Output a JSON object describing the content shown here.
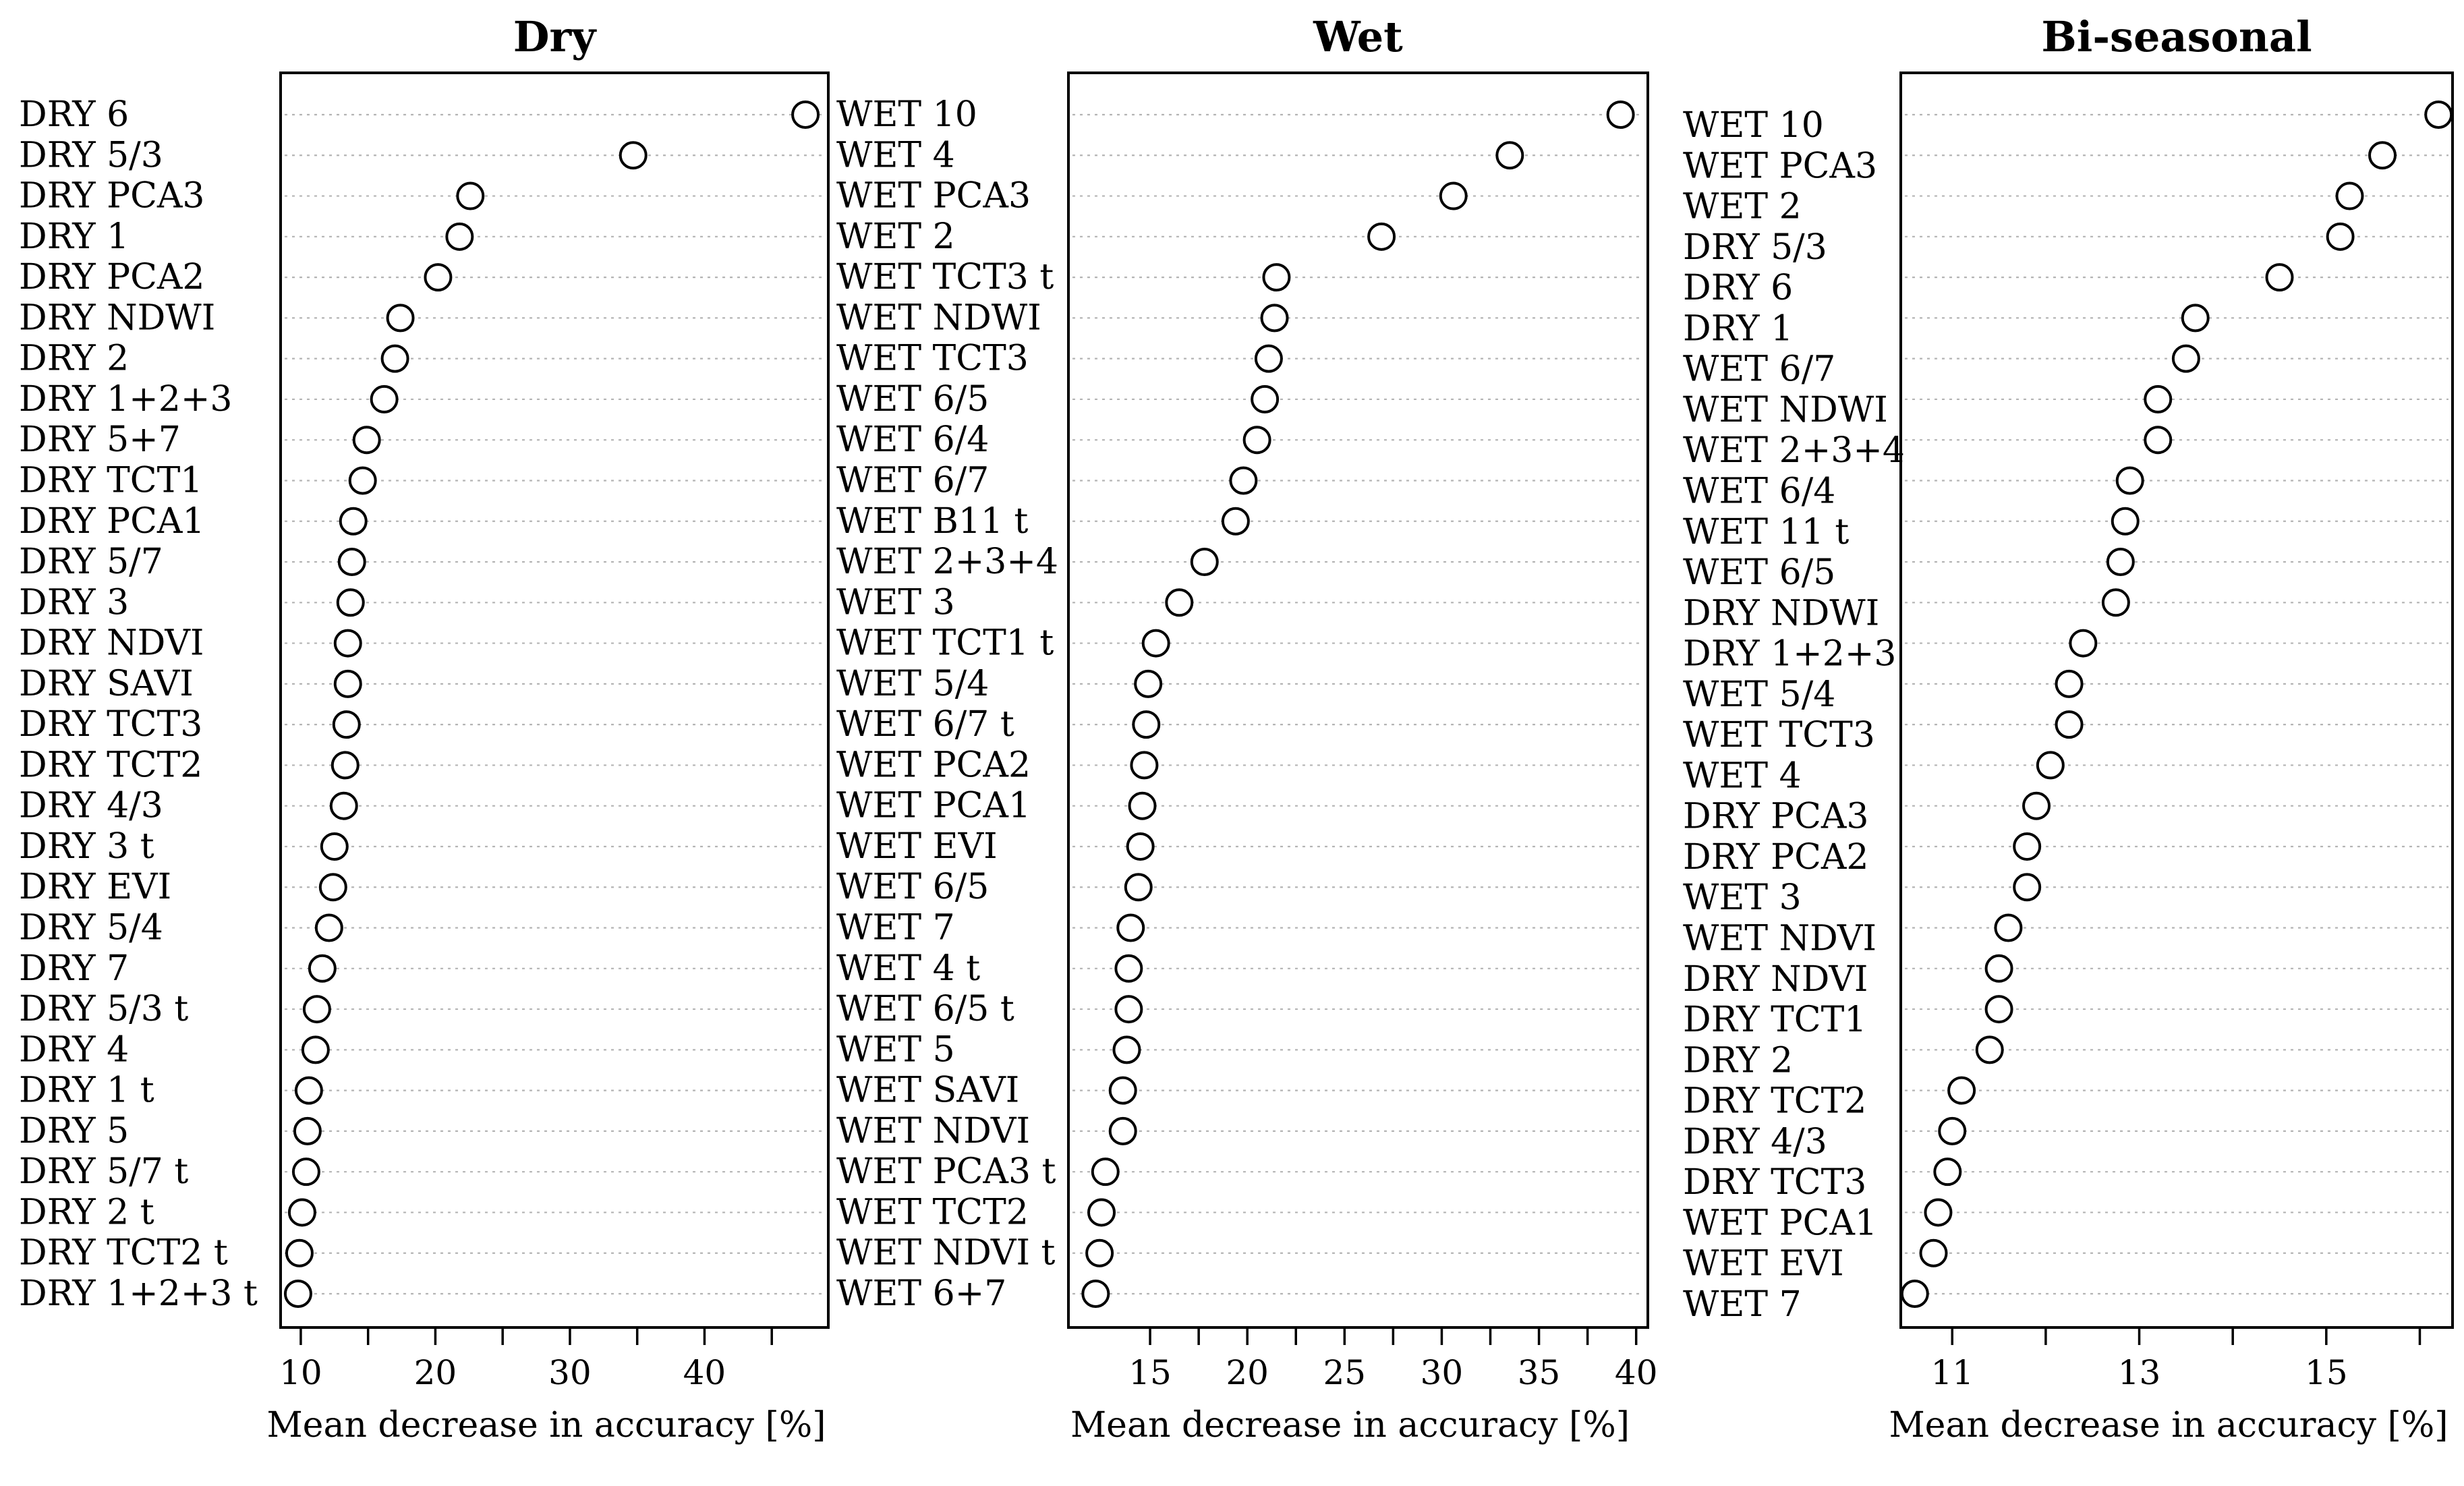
{
  "chart_data": [
    {
      "type": "dot",
      "title": "Dry",
      "xlabel": "Mean decrease in accuracy [%]",
      "ylabel": "",
      "xlim": [
        8.5,
        49.2
      ],
      "xticks": [
        10,
        20,
        30,
        40
      ],
      "categories": [
        "DRY 6",
        "DRY 5/3",
        "DRY PCA3",
        "DRY 1",
        "DRY PCA2",
        "DRY NDWI",
        "DRY 2",
        "DRY 1+2+3",
        "DRY 5+7",
        "DRY TCT1",
        "DRY PCA1",
        "DRY 5/7",
        "DRY 3",
        "DRY NDVI",
        "DRY SAVI",
        "DRY TCT3",
        "DRY TCT2",
        "DRY 4/3",
        "DRY 3 t",
        "DRY EVI",
        "DRY 5/4",
        "DRY 7",
        "DRY 5/3 t",
        "DRY 4",
        "DRY 1 t",
        "DRY 5",
        "DRY 5/7 t",
        "DRY 2 t",
        "DRY TCT2 t",
        "DRY 1+2+3 t"
      ],
      "values": [
        47.5,
        34.7,
        22.6,
        21.8,
        20.2,
        17.4,
        17.0,
        16.2,
        14.9,
        14.6,
        13.9,
        13.8,
        13.7,
        13.5,
        13.5,
        13.4,
        13.3,
        13.2,
        12.5,
        12.4,
        12.1,
        11.6,
        11.2,
        11.1,
        10.6,
        10.5,
        10.4,
        10.1,
        9.9,
        9.8
      ]
    },
    {
      "type": "dot",
      "title": "Wet",
      "xlabel": "Mean decrease in accuracy [%]",
      "ylabel": "",
      "xlim": [
        10.8,
        40.6
      ],
      "xticks": [
        15,
        20,
        25,
        30,
        35,
        40
      ],
      "categories": [
        "WET 10",
        "WET 4",
        "WET PCA3",
        "WET 2",
        "WET TCT3 t",
        "WET NDWI",
        "WET TCT3",
        "WET 6/5",
        "WET 6/4",
        "WET 6/7",
        "WET B11 t",
        "WET 2+3+4",
        "WET 3",
        "WET TCT1 t",
        "WET 5/4",
        "WET 6/7 t",
        "WET PCA2",
        "WET PCA1",
        "WET EVI",
        "WET 6/5",
        "WET 7",
        "WET 4 t",
        "WET 6/5 t",
        "WET 5",
        "WET SAVI",
        "WET NDVI",
        "WET PCA3 t",
        "WET TCT2",
        "WET NDVI t",
        "WET 6+7"
      ],
      "values": [
        39.2,
        33.5,
        30.6,
        26.9,
        21.5,
        21.4,
        21.1,
        20.9,
        20.5,
        19.8,
        19.4,
        17.8,
        16.5,
        15.3,
        14.9,
        14.8,
        14.7,
        14.6,
        14.5,
        14.4,
        14.0,
        13.9,
        13.9,
        13.8,
        13.6,
        13.6,
        12.7,
        12.5,
        12.4,
        12.2
      ]
    },
    {
      "type": "dot",
      "title": "Bi-seasonal",
      "xlabel": "Mean decrease in accuracy [%]",
      "ylabel": "",
      "xlim": [
        10.45,
        16.35
      ],
      "xticks": [
        11,
        13,
        15
      ],
      "categories": [
        "WET 10",
        "WET PCA3",
        "WET 2",
        "DRY 5/3",
        "DRY 6",
        "DRY 1",
        "WET 6/7",
        "WET NDWI",
        "WET 2+3+4",
        "WET 6/4",
        "WET 11 t",
        "WET 6/5",
        "DRY NDWI",
        "DRY 1+2+3",
        "WET 5/4",
        "WET TCT3",
        "WET 4",
        "DRY PCA3",
        "DRY PCA2",
        "WET 3",
        "WET NDVI",
        "DRY NDVI",
        "DRY TCT1",
        "DRY 2",
        "DRY TCT2",
        "DRY 4/3",
        "DRY TCT3",
        "WET PCA1",
        "WET EVI",
        "WET 7"
      ],
      "values": [
        16.2,
        15.6,
        15.25,
        15.15,
        14.5,
        13.6,
        13.5,
        13.2,
        13.2,
        12.9,
        12.85,
        12.8,
        12.75,
        12.4,
        12.25,
        12.25,
        12.05,
        11.9,
        11.8,
        11.8,
        11.6,
        11.5,
        11.5,
        11.4,
        11.1,
        11.0,
        10.95,
        10.85,
        10.8,
        10.6
      ]
    }
  ]
}
